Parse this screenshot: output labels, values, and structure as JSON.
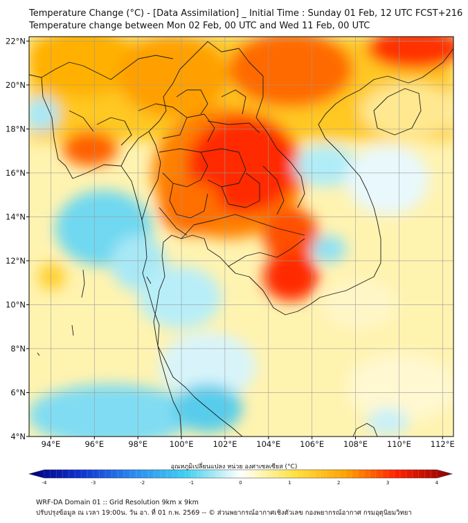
{
  "header": {
    "line1": "Temperature Change (°C) - [Data Assimilation] _ Initial Time : Sunday 01 Feb, 12 UTC FCST+216",
    "line2": "Temperature change between Mon 02 Feb, 00 UTC and Wed 11 Feb, 00 UTC"
  },
  "map": {
    "lat_labels": [
      "22°N",
      "20°N",
      "18°N",
      "16°N",
      "14°N",
      "12°N",
      "10°N",
      "8°N",
      "6°N",
      "4°N"
    ],
    "lon_labels": [
      "94°E",
      "96°E",
      "98°E",
      "100°E",
      "102°E",
      "104°E",
      "106°E",
      "108°E",
      "110°E",
      "112°E"
    ],
    "extent": {
      "lon_min": 93,
      "lon_max": 112.5,
      "lat_min": 4,
      "lat_max": 22.2
    }
  },
  "colorbar": {
    "title": "อุณหภูมิเปลี่ยนแปลง หน่วย องศาเซลเซียส (°C)",
    "ticks": [
      "-4",
      "-3",
      "-2",
      "-1",
      "0",
      "1",
      "2",
      "3",
      "4"
    ],
    "min": -4,
    "max": 4
  },
  "footer": {
    "line1": "WRF-DA Domain 01 :: Grid Resolution 9km x 9km",
    "line2": "ปรับปรุงข้อมูล ณ เวลา 19:00น. วัน อา. ที่ 01 ก.พ. 2569 -- © ส่วนพยากรณ์อากาศเชิงตัวเลข กองพยากรณ์อากาศ กรมอุตุนิยมวิทยา"
  },
  "colors": {
    "background": "#ffffff",
    "border": "#000000",
    "grid": "#999999",
    "coast": "#1a1a1a"
  }
}
